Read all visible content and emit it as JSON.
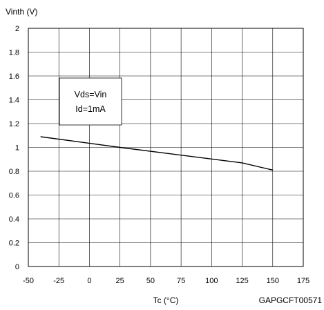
{
  "chart_data": {
    "type": "line",
    "title": "",
    "ylabel": "Vinth (V)",
    "xlabel": "Tc (°C)",
    "figure_id": "GAPGCFT00571",
    "xlim": [
      -50,
      175
    ],
    "ylim": [
      0,
      2
    ],
    "xticks": [
      -50,
      -25,
      0,
      25,
      50,
      75,
      100,
      125,
      150,
      175
    ],
    "yticks": [
      0,
      0.2,
      0.4,
      0.6,
      0.8,
      1,
      1.2,
      1.4,
      1.6,
      1.8,
      2
    ],
    "grid": true,
    "annotation": [
      "Vds=Vin",
      "Id=1mA"
    ],
    "series": [
      {
        "x": [
          -40,
          25,
          125,
          150
        ],
        "y": [
          1.09,
          1.0,
          0.87,
          0.81
        ]
      }
    ]
  }
}
